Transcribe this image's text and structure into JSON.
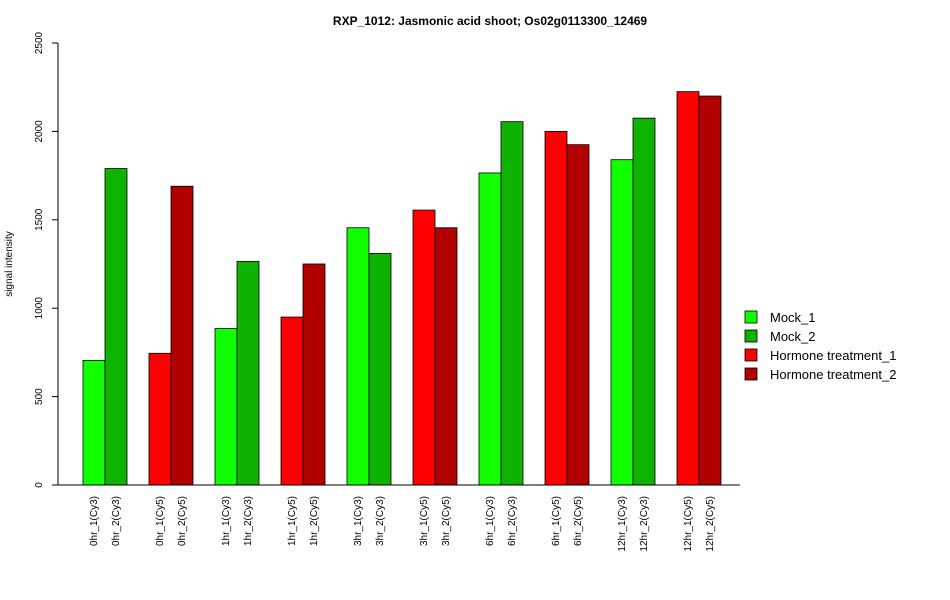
{
  "chart_data": {
    "type": "bar",
    "title": "RXP_1012: Jasmonic acid shoot; Os02g0113300_12469",
    "xlabel": "",
    "ylabel": "signal intensity",
    "ylim": [
      0,
      2500
    ],
    "yticks": [
      0,
      500,
      1000,
      1500,
      2000,
      2500
    ],
    "grid": false,
    "legend_position": "right",
    "categories": [
      "0hr_1(Cy3)",
      "0hr_2(Cy3)",
      "0hr_1(Cy5)",
      "0hr_2(Cy5)",
      "1hr_1(Cy3)",
      "1hr_2(Cy3)",
      "1hr_1(Cy5)",
      "1hr_2(Cy5)",
      "3hr_1(Cy3)",
      "3hr_2(Cy3)",
      "3hr_1(Cy5)",
      "3hr_2(Cy5)",
      "6hr_1(Cy3)",
      "6hr_2(Cy3)",
      "6hr_1(Cy5)",
      "6hr_2(Cy5)",
      "12hr_1(Cy3)",
      "12hr_2(Cy3)",
      "12hr_1(Cy5)",
      "12hr_2(Cy5)"
    ],
    "values": [
      705,
      1790,
      745,
      1690,
      885,
      1265,
      950,
      1250,
      1455,
      1310,
      1555,
      1455,
      1765,
      2055,
      2000,
      1925,
      1840,
      2075,
      2225,
      2200
    ],
    "bar_series": [
      0,
      1,
      2,
      3,
      0,
      1,
      2,
      3,
      0,
      1,
      2,
      3,
      0,
      1,
      2,
      3,
      0,
      1,
      2,
      3
    ],
    "series": [
      {
        "name": "Mock_1",
        "color": "#11ff00"
      },
      {
        "name": "Mock_2",
        "color": "#10b200"
      },
      {
        "name": "Hormone treatment_1",
        "color": "#ff0000"
      },
      {
        "name": "Hormone treatment_2",
        "color": "#b20000"
      }
    ]
  }
}
